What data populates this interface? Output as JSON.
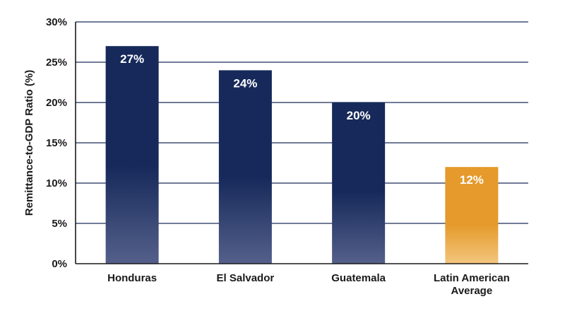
{
  "chart_data": {
    "type": "bar",
    "categories": [
      [
        "Honduras"
      ],
      [
        "El Salvador"
      ],
      [
        "Guatemala"
      ],
      [
        "Latin American",
        "Average"
      ]
    ],
    "values": [
      27,
      24,
      20,
      12
    ],
    "data_labels": [
      "27%",
      "24%",
      "20%",
      "12%"
    ],
    "title": "",
    "xlabel": "",
    "ylabel": "Remittance-to-GDP Ratio (%)",
    "ylim": [
      0,
      30
    ],
    "yticks": [
      0,
      5,
      10,
      15,
      20,
      25,
      30
    ],
    "ytick_labels": [
      "0%",
      "5%",
      "10%",
      "15%",
      "20%",
      "25%",
      "30%"
    ],
    "grid": true,
    "legend": "none",
    "colors": {
      "bar_dark": "#16295a",
      "bar_dark_fade": "#54608a",
      "bar_highlight": "#e59a2b",
      "bar_highlight_fade": "#f2c67e",
      "grid": "#1b2c58",
      "axis": "#1a1a1a"
    },
    "highlight_index": 3
  }
}
